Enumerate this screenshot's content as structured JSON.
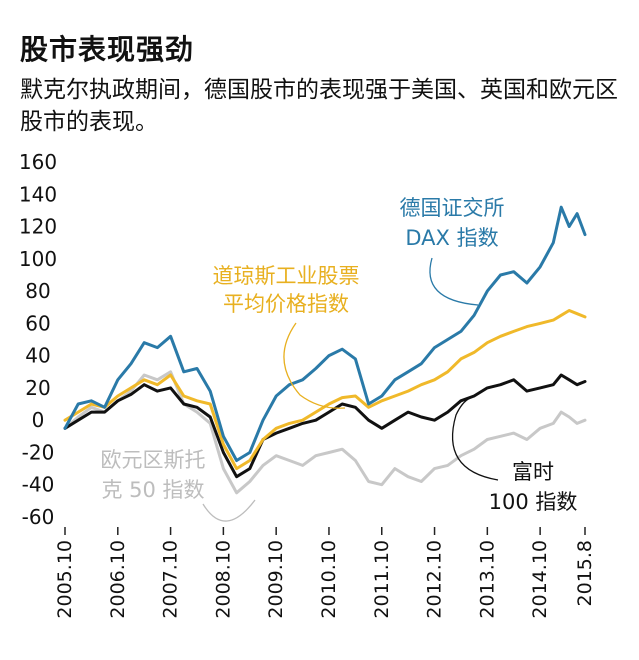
{
  "title": "股市表现强劲",
  "subtitle": "默克尔执政期间，德国股市的表现强于美国、英国和欧元区股市的表现。",
  "chart_data": {
    "type": "line",
    "title": "股市表现强劲",
    "ylabel": "",
    "xlabel": "",
    "ylim": [
      -60,
      160
    ],
    "yticks": [
      160,
      140,
      120,
      100,
      80,
      60,
      40,
      20,
      0,
      -20,
      -40,
      -60
    ],
    "xlim": [
      2005.75,
      2015.6
    ],
    "xticks": [
      {
        "value": 2005.75,
        "label": "2005.10"
      },
      {
        "value": 2006.75,
        "label": "2006.10"
      },
      {
        "value": 2007.75,
        "label": "2007.10"
      },
      {
        "value": 2008.75,
        "label": "2008.10"
      },
      {
        "value": 2009.75,
        "label": "2009.10"
      },
      {
        "value": 2010.75,
        "label": "2010.10"
      },
      {
        "value": 2011.75,
        "label": "2011.10"
      },
      {
        "value": 2012.75,
        "label": "2012.10"
      },
      {
        "value": 2013.75,
        "label": "2013.10"
      },
      {
        "value": 2014.75,
        "label": "2014.10"
      },
      {
        "value": 2015.6,
        "label": "2015.8"
      }
    ],
    "series": [
      {
        "name": "德国证交所DAX指数",
        "color": "#2a7aa8",
        "labels": [
          "德国证交所",
          "DAX 指数"
        ],
        "x": [
          2005.75,
          2006.0,
          2006.25,
          2006.5,
          2006.75,
          2007.0,
          2007.25,
          2007.5,
          2007.75,
          2008.0,
          2008.25,
          2008.5,
          2008.75,
          2009.0,
          2009.25,
          2009.5,
          2009.75,
          2010.0,
          2010.25,
          2010.5,
          2010.75,
          2011.0,
          2011.25,
          2011.5,
          2011.75,
          2012.0,
          2012.25,
          2012.5,
          2012.75,
          2013.0,
          2013.25,
          2013.5,
          2013.75,
          2014.0,
          2014.25,
          2014.5,
          2014.75,
          2015.0,
          2015.15,
          2015.3,
          2015.45,
          2015.6
        ],
        "values": [
          -5,
          10,
          12,
          8,
          25,
          35,
          48,
          45,
          52,
          30,
          32,
          18,
          -10,
          -25,
          -20,
          0,
          15,
          22,
          25,
          32,
          40,
          44,
          38,
          10,
          15,
          25,
          30,
          35,
          45,
          50,
          55,
          65,
          80,
          90,
          92,
          85,
          95,
          110,
          132,
          120,
          128,
          115
        ]
      },
      {
        "name": "道琼斯工业股票平均价格指数",
        "color": "#f0b92a",
        "labels": [
          "道琼斯工业股票",
          "平均价格指数"
        ],
        "x": [
          2005.75,
          2006.0,
          2006.25,
          2006.5,
          2006.75,
          2007.0,
          2007.25,
          2007.5,
          2007.75,
          2008.0,
          2008.25,
          2008.5,
          2008.75,
          2009.0,
          2009.25,
          2009.5,
          2009.75,
          2010.0,
          2010.25,
          2010.5,
          2010.75,
          2011.0,
          2011.25,
          2011.5,
          2011.75,
          2012.0,
          2012.25,
          2012.5,
          2012.75,
          2013.0,
          2013.25,
          2013.5,
          2013.75,
          2014.0,
          2014.25,
          2014.5,
          2014.75,
          2015.0,
          2015.15,
          2015.3,
          2015.45,
          2015.6
        ],
        "values": [
          0,
          5,
          10,
          8,
          15,
          20,
          25,
          22,
          28,
          15,
          12,
          10,
          -15,
          -30,
          -25,
          -12,
          -5,
          -2,
          0,
          5,
          10,
          14,
          15,
          8,
          12,
          15,
          18,
          22,
          25,
          30,
          38,
          42,
          48,
          52,
          55,
          58,
          60,
          62,
          65,
          68,
          66,
          64
        ]
      },
      {
        "name": "富时100指数",
        "color": "#111111",
        "labels": [
          "富时",
          "100 指数"
        ],
        "x": [
          2005.75,
          2006.0,
          2006.25,
          2006.5,
          2006.75,
          2007.0,
          2007.25,
          2007.5,
          2007.75,
          2008.0,
          2008.25,
          2008.5,
          2008.75,
          2009.0,
          2009.25,
          2009.5,
          2009.75,
          2010.0,
          2010.25,
          2010.5,
          2010.75,
          2011.0,
          2011.25,
          2011.5,
          2011.75,
          2012.0,
          2012.25,
          2012.5,
          2012.75,
          2013.0,
          2013.25,
          2013.5,
          2013.75,
          2014.0,
          2014.25,
          2014.5,
          2014.75,
          2015.0,
          2015.15,
          2015.3,
          2015.45,
          2015.6
        ],
        "values": [
          -5,
          0,
          5,
          5,
          12,
          16,
          22,
          18,
          20,
          10,
          8,
          2,
          -20,
          -35,
          -30,
          -12,
          -8,
          -5,
          -2,
          0,
          5,
          10,
          8,
          0,
          -5,
          0,
          5,
          2,
          0,
          5,
          12,
          15,
          20,
          22,
          25,
          18,
          20,
          22,
          28,
          25,
          22,
          24
        ]
      },
      {
        "name": "欧元区斯托克50指数",
        "color": "#c8c8c8",
        "labels": [
          "欧元区斯托",
          "克 50 指数"
        ],
        "x": [
          2005.75,
          2006.0,
          2006.25,
          2006.5,
          2006.75,
          2007.0,
          2007.25,
          2007.5,
          2007.75,
          2008.0,
          2008.25,
          2008.5,
          2008.75,
          2009.0,
          2009.25,
          2009.5,
          2009.75,
          2010.0,
          2010.25,
          2010.5,
          2010.75,
          2011.0,
          2011.25,
          2011.5,
          2011.75,
          2012.0,
          2012.25,
          2012.5,
          2012.75,
          2013.0,
          2013.25,
          2013.5,
          2013.75,
          2014.0,
          2014.25,
          2014.5,
          2014.75,
          2015.0,
          2015.15,
          2015.3,
          2015.45,
          2015.6
        ],
        "values": [
          -5,
          2,
          8,
          5,
          12,
          18,
          28,
          25,
          30,
          10,
          5,
          -2,
          -30,
          -45,
          -38,
          -28,
          -22,
          -25,
          -28,
          -22,
          -20,
          -18,
          -25,
          -38,
          -40,
          -30,
          -35,
          -38,
          -30,
          -28,
          -22,
          -18,
          -12,
          -10,
          -8,
          -12,
          -5,
          -2,
          5,
          2,
          -2,
          0
        ]
      }
    ]
  }
}
